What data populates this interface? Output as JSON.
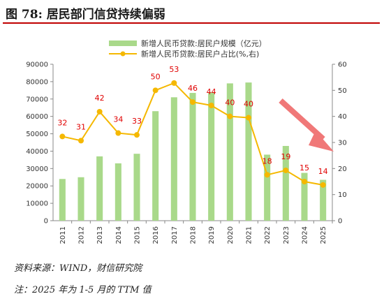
{
  "figure": {
    "title": "图 78:  居民部门信贷持续偏弱",
    "source": "资料来源：WIND，财信研究院",
    "note": "注：2025 年为 1-5 月的 TTM 值"
  },
  "colors": {
    "bar": "#a9d98a",
    "line": "#f5b800",
    "label": "#e00000",
    "arrow": "#f07878",
    "title_rule": "#c00000"
  },
  "chart_data": {
    "type": "bar",
    "categories": [
      "2011",
      "2012",
      "2013",
      "2014",
      "2015",
      "2016",
      "2017",
      "2018",
      "2019",
      "2020",
      "2021",
      "2022",
      "2023",
      "2024",
      "2025"
    ],
    "series": [
      {
        "name": "新增人民币贷款:居民户规模（亿元）",
        "type": "bar",
        "axis": "left",
        "values": [
          24000,
          25000,
          37000,
          33000,
          38500,
          63000,
          71000,
          73500,
          74000,
          79000,
          79500,
          38000,
          43000,
          27500,
          23500
        ]
      },
      {
        "name": "新增人民币贷款:居民户占比(%,右)",
        "type": "line",
        "axis": "right",
        "values": [
          32.3,
          30.7,
          41.8,
          33.6,
          32.9,
          50.0,
          52.8,
          45.5,
          44.2,
          40.0,
          39.5,
          17.6,
          19.3,
          15.0,
          13.7
        ],
        "data_labels": [
          "32",
          "31",
          "42",
          "34",
          "33",
          "50",
          "53",
          "46",
          "44",
          "40",
          "40",
          "18",
          "19",
          "15",
          "14"
        ]
      }
    ],
    "y_left": {
      "ylim": [
        0,
        90000
      ],
      "ticks": [
        "0",
        "10000",
        "20000",
        "30000",
        "40000",
        "50000",
        "60000",
        "70000",
        "80000",
        "90000"
      ]
    },
    "y_right": {
      "ylim": [
        0,
        60
      ],
      "ticks": [
        "0",
        "10",
        "20",
        "30",
        "40",
        "50",
        "60"
      ]
    },
    "legend_position": "top",
    "grid": false,
    "annotation": "downward arrow from 2021 toward 2025"
  }
}
